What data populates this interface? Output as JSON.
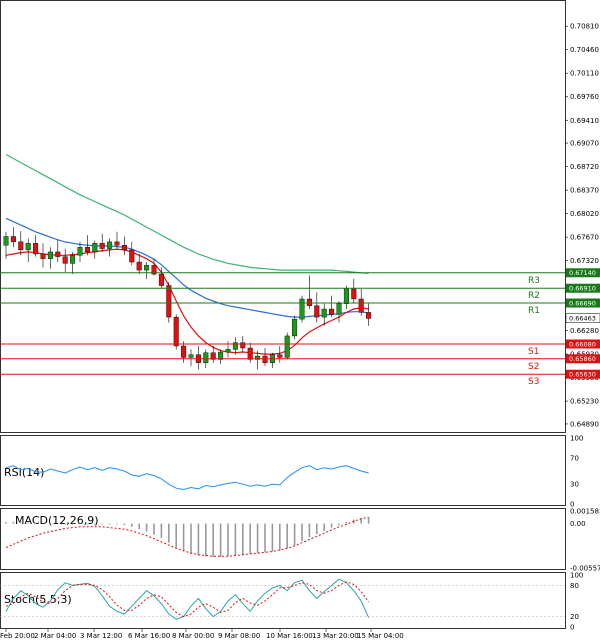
{
  "chart_data": {
    "type": "candlestick",
    "main": {
      "y_ticks": [
        "0.70810",
        "0.70460",
        "0.70110",
        "0.69760",
        "0.69410",
        "0.69070",
        "0.68720",
        "0.68370",
        "0.68020",
        "0.67670",
        "0.67320",
        "0.66280",
        "0.65930",
        "0.65580",
        "0.65230",
        "0.64890"
      ],
      "y_range": [
        0.6477,
        0.7117
      ],
      "current_price": "0.66463",
      "pivots": [
        {
          "name": "R3",
          "value": "0.67140",
          "color": "#1a7a1a"
        },
        {
          "name": "R2",
          "value": "0.66910",
          "color": "#1a7a1a"
        },
        {
          "name": "R1",
          "value": "0.66690",
          "color": "#1a7a1a"
        },
        {
          "name": "S1",
          "value": "0.66080",
          "color": "#dd1111"
        },
        {
          "name": "S2",
          "value": "0.65860",
          "color": "#dd1111"
        },
        {
          "name": "S3",
          "value": "0.65630",
          "color": "#dd1111"
        }
      ],
      "x_labels": [
        "Feb 20:00",
        "2 Mar 04:00",
        "3 Mar 12:00",
        "6 Mar 16:00",
        "8 Mar 00:00",
        "9 Mar 08:00",
        "10 Mar 16:00",
        "13 Mar 20:00",
        "15 Mar 04:00"
      ],
      "candles": [
        [
          0.6755,
          0.6775,
          0.6735,
          0.6768
        ],
        [
          0.6768,
          0.6782,
          0.6752,
          0.676
        ],
        [
          0.676,
          0.6776,
          0.674,
          0.6748
        ],
        [
          0.6748,
          0.6765,
          0.673,
          0.6758
        ],
        [
          0.6758,
          0.677,
          0.6738,
          0.6742
        ],
        [
          0.6742,
          0.6758,
          0.6722,
          0.6735
        ],
        [
          0.6735,
          0.6752,
          0.672,
          0.6745
        ],
        [
          0.6745,
          0.6762,
          0.673,
          0.6738
        ],
        [
          0.6738,
          0.675,
          0.6715,
          0.6728
        ],
        [
          0.6728,
          0.6745,
          0.6712,
          0.674
        ],
        [
          0.674,
          0.676,
          0.673,
          0.6752
        ],
        [
          0.6752,
          0.677,
          0.674,
          0.6745
        ],
        [
          0.6745,
          0.6762,
          0.6735,
          0.6758
        ],
        [
          0.6758,
          0.6772,
          0.6745,
          0.675
        ],
        [
          0.675,
          0.6765,
          0.6738,
          0.676
        ],
        [
          0.676,
          0.6775,
          0.6748,
          0.6755
        ],
        [
          0.6755,
          0.6768,
          0.674,
          0.6748
        ],
        [
          0.6748,
          0.676,
          0.6725,
          0.673
        ],
        [
          0.673,
          0.6742,
          0.6712,
          0.6718
        ],
        [
          0.6718,
          0.673,
          0.6705,
          0.6725
        ],
        [
          0.6725,
          0.6735,
          0.671,
          0.6712
        ],
        [
          0.6712,
          0.6722,
          0.669,
          0.6695
        ],
        [
          0.6695,
          0.67,
          0.664,
          0.6648
        ],
        [
          0.6648,
          0.6652,
          0.66,
          0.6605
        ],
        [
          0.6605,
          0.6612,
          0.658,
          0.6588
        ],
        [
          0.6588,
          0.66,
          0.6575,
          0.6592
        ],
        [
          0.6592,
          0.6605,
          0.657,
          0.658
        ],
        [
          0.658,
          0.66,
          0.6572,
          0.6595
        ],
        [
          0.6595,
          0.6605,
          0.658,
          0.6585
        ],
        [
          0.6585,
          0.66,
          0.6578,
          0.6596
        ],
        [
          0.6596,
          0.6612,
          0.6588,
          0.66
        ],
        [
          0.66,
          0.6618,
          0.6592,
          0.661
        ],
        [
          0.661,
          0.662,
          0.6595,
          0.6602
        ],
        [
          0.6602,
          0.661,
          0.658,
          0.6585
        ],
        [
          0.6585,
          0.6598,
          0.657,
          0.659
        ],
        [
          0.659,
          0.6602,
          0.6575,
          0.658
        ],
        [
          0.658,
          0.6595,
          0.6572,
          0.6592
        ],
        [
          0.6592,
          0.6605,
          0.658,
          0.6588
        ],
        [
          0.6588,
          0.6625,
          0.6585,
          0.662
        ],
        [
          0.662,
          0.665,
          0.6615,
          0.6645
        ],
        [
          0.6645,
          0.668,
          0.664,
          0.6675
        ],
        [
          0.6675,
          0.671,
          0.666,
          0.6665
        ],
        [
          0.6665,
          0.6685,
          0.664,
          0.6648
        ],
        [
          0.6648,
          0.6668,
          0.6635,
          0.666
        ],
        [
          0.666,
          0.668,
          0.6648,
          0.6652
        ],
        [
          0.6652,
          0.6672,
          0.664,
          0.6668
        ],
        [
          0.6668,
          0.6695,
          0.666,
          0.669
        ],
        [
          0.669,
          0.6705,
          0.6668,
          0.6675
        ],
        [
          0.6675,
          0.669,
          0.665,
          0.6655
        ],
        [
          0.6655,
          0.6668,
          0.6635,
          0.6646
        ]
      ],
      "ma_red": [
        0.674,
        0.6742,
        0.6744,
        0.6745,
        0.6744,
        0.6742,
        0.6741,
        0.674,
        0.674,
        0.6741,
        0.6742,
        0.6744,
        0.6745,
        0.6747,
        0.6748,
        0.6749,
        0.6748,
        0.6745,
        0.674,
        0.6735,
        0.6728,
        0.6715,
        0.6695,
        0.6672,
        0.665,
        0.6633,
        0.662,
        0.661,
        0.6603,
        0.6598,
        0.6596,
        0.6595,
        0.6596,
        0.6595,
        0.6594,
        0.6593,
        0.6593,
        0.6594,
        0.6598,
        0.6606,
        0.6617,
        0.6626,
        0.6632,
        0.6638,
        0.6643,
        0.6648,
        0.6655,
        0.666,
        0.6662,
        0.666
      ],
      "ma_blue": [
        0.6795,
        0.679,
        0.6785,
        0.678,
        0.6775,
        0.6771,
        0.6767,
        0.6763,
        0.676,
        0.6758,
        0.6756,
        0.6755,
        0.6754,
        0.6754,
        0.6754,
        0.6753,
        0.6752,
        0.6749,
        0.6745,
        0.674,
        0.6734,
        0.6726,
        0.6716,
        0.6706,
        0.6696,
        0.6688,
        0.6682,
        0.6676,
        0.6672,
        0.6668,
        0.6665,
        0.6663,
        0.6661,
        0.6659,
        0.6657,
        0.6655,
        0.6653,
        0.6651,
        0.6649,
        0.6648,
        0.6648,
        0.6649,
        0.665,
        0.6651,
        0.6652,
        0.6653,
        0.6655,
        0.6656,
        0.6656,
        0.6654
      ],
      "ma_green": [
        0.689,
        0.6884,
        0.6878,
        0.6872,
        0.6866,
        0.686,
        0.6854,
        0.6848,
        0.6842,
        0.6836,
        0.683,
        0.6825,
        0.682,
        0.6815,
        0.681,
        0.6805,
        0.68,
        0.6794,
        0.6788,
        0.6782,
        0.6776,
        0.677,
        0.6764,
        0.6758,
        0.6752,
        0.6747,
        0.6742,
        0.6738,
        0.6734,
        0.6731,
        0.6728,
        0.6726,
        0.6724,
        0.6722,
        0.6721,
        0.672,
        0.6719,
        0.6718,
        0.6718,
        0.6718,
        0.6718,
        0.6718,
        0.6718,
        0.6718,
        0.6718,
        0.6717,
        0.6716,
        0.6715,
        0.6714,
        0.6713
      ]
    },
    "rsi": {
      "label": "RSI(14)",
      "y_ticks": [
        "100",
        "70",
        "30",
        "0"
      ],
      "values": [
        55,
        58,
        52,
        54,
        49,
        48,
        53,
        50,
        47,
        52,
        56,
        52,
        55,
        51,
        55,
        53,
        50,
        44,
        42,
        46,
        43,
        38,
        30,
        24,
        22,
        25,
        23,
        28,
        26,
        29,
        31,
        33,
        30,
        27,
        29,
        27,
        30,
        29,
        40,
        48,
        55,
        58,
        52,
        55,
        53,
        56,
        58,
        54,
        50,
        47
      ]
    },
    "macd": {
      "label": "MACD(12,26,9)",
      "y_ticks": [
        "0.001583",
        "0.00",
        "-0.005573"
      ],
      "y_range": [
        -0.005573,
        0.001583
      ],
      "hist": [
        0.0002,
        0.0002,
        0.0001,
        0.0001,
        0.0001,
        0.0,
        0.0,
        0.0,
        -0.0001,
        -0.0001,
        -0.0001,
        -0.0001,
        -0.0001,
        -0.0001,
        -0.0001,
        -0.0001,
        -0.0002,
        -0.0004,
        -0.0007,
        -0.001,
        -0.0014,
        -0.0018,
        -0.0024,
        -0.003,
        -0.0035,
        -0.0038,
        -0.004,
        -0.0041,
        -0.0042,
        -0.0042,
        -0.0041,
        -0.004,
        -0.0039,
        -0.0038,
        -0.0037,
        -0.0036,
        -0.0035,
        -0.0034,
        -0.0031,
        -0.0027,
        -0.0022,
        -0.0017,
        -0.0013,
        -0.0009,
        -0.0005,
        -0.0002,
        0.0002,
        0.0005,
        0.0007,
        0.0008
      ],
      "signal": [
        -0.003,
        -0.0026,
        -0.0022,
        -0.0018,
        -0.0015,
        -0.0012,
        -0.001,
        -0.0008,
        -0.0006,
        -0.0005,
        -0.0004,
        -0.0004,
        -0.0004,
        -0.0004,
        -0.0005,
        -0.0006,
        -0.0007,
        -0.0009,
        -0.0012,
        -0.0015,
        -0.0019,
        -0.0023,
        -0.0027,
        -0.0031,
        -0.0034,
        -0.0037,
        -0.0039,
        -0.004,
        -0.0041,
        -0.0041,
        -0.0041,
        -0.004,
        -0.0039,
        -0.0038,
        -0.0037,
        -0.0036,
        -0.0035,
        -0.0033,
        -0.0031,
        -0.0028,
        -0.0024,
        -0.002,
        -0.0016,
        -0.0012,
        -0.0008,
        -0.0004,
        -0.0001,
        0.0003,
        0.0006,
        0.0008
      ]
    },
    "stoch": {
      "label": "Stoch(5,5,3)",
      "y_ticks": [
        "100",
        "80",
        "20",
        "0"
      ],
      "main": [
        30,
        55,
        70,
        60,
        45,
        38,
        50,
        72,
        85,
        80,
        82,
        84,
        78,
        60,
        40,
        30,
        25,
        40,
        55,
        70,
        60,
        45,
        25,
        15,
        20,
        40,
        55,
        35,
        20,
        30,
        50,
        62,
        45,
        30,
        50,
        65,
        75,
        80,
        70,
        85,
        90,
        70,
        55,
        68,
        80,
        92,
        85,
        70,
        50,
        18
      ],
      "signal": [
        40,
        45,
        58,
        65,
        58,
        48,
        45,
        55,
        70,
        80,
        82,
        82,
        80,
        72,
        58,
        42,
        32,
        32,
        42,
        55,
        62,
        58,
        43,
        28,
        20,
        25,
        38,
        45,
        38,
        28,
        32,
        47,
        55,
        46,
        42,
        50,
        62,
        75,
        76,
        80,
        85,
        82,
        70,
        65,
        70,
        80,
        87,
        82,
        68,
        48
      ]
    }
  },
  "colors": {
    "bull": "#1a9a1a",
    "bear": "#e01010",
    "ma_red": "#e01010",
    "ma_blue": "#2d6ed8",
    "ma_green": "#3cb371",
    "rsi_line": "#1e90ff",
    "stoch_main": "#2aa6a6",
    "stoch_signal": "#e01010"
  }
}
